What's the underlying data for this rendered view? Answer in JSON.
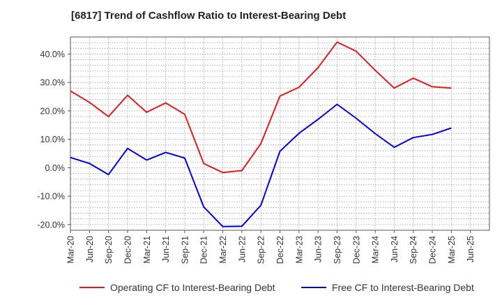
{
  "header": {
    "title": "[6817]  Trend of Cashflow Ratio to Interest-Bearing Debt"
  },
  "chart_data": {
    "type": "line",
    "title": "[6817]  Trend of Cashflow Ratio to Interest-Bearing Debt",
    "xlabel": "",
    "ylabel": "",
    "x": [
      "Mar-20",
      "Jun-20",
      "Sep-20",
      "Dec-20",
      "Mar-21",
      "Jun-21",
      "Sep-21",
      "Dec-21",
      "Mar-22",
      "Jun-22",
      "Sep-22",
      "Dec-22",
      "Mar-23",
      "Jun-23",
      "Sep-23",
      "Dec-23",
      "Mar-24",
      "Jun-24",
      "Sep-24",
      "Dec-24",
      "Mar-25",
      "Jun-25"
    ],
    "y_ticks": [
      "40.0%",
      "30.0%",
      "20.0%",
      "10.0%",
      "0.0%",
      "-10.0%",
      "-20.0%"
    ],
    "y_tick_values": [
      40,
      30,
      20,
      10,
      0,
      -10,
      -20
    ],
    "ylim": [
      -22,
      46
    ],
    "grid": true,
    "legend_position": "bottom",
    "series": [
      {
        "name": "Operating CF to Interest-Bearing Debt",
        "color": "#e31a1c",
        "values": [
          27.0,
          23.0,
          18.0,
          25.5,
          19.5,
          22.8,
          18.8,
          1.5,
          -1.7,
          -1.0,
          8.5,
          25.2,
          28.3,
          35.2,
          44.2,
          41.0,
          34.3,
          28.0,
          31.5,
          28.5,
          28.0,
          null
        ]
      },
      {
        "name": "Free CF to Interest-Bearing Debt",
        "color": "#0000dd",
        "values": [
          3.6,
          1.5,
          -2.4,
          6.8,
          2.7,
          5.4,
          3.4,
          -13.8,
          -20.7,
          -20.6,
          -13.2,
          5.8,
          12.1,
          17.0,
          22.3,
          17.4,
          12.0,
          7.2,
          10.6,
          11.7,
          14.0,
          null
        ]
      }
    ]
  }
}
